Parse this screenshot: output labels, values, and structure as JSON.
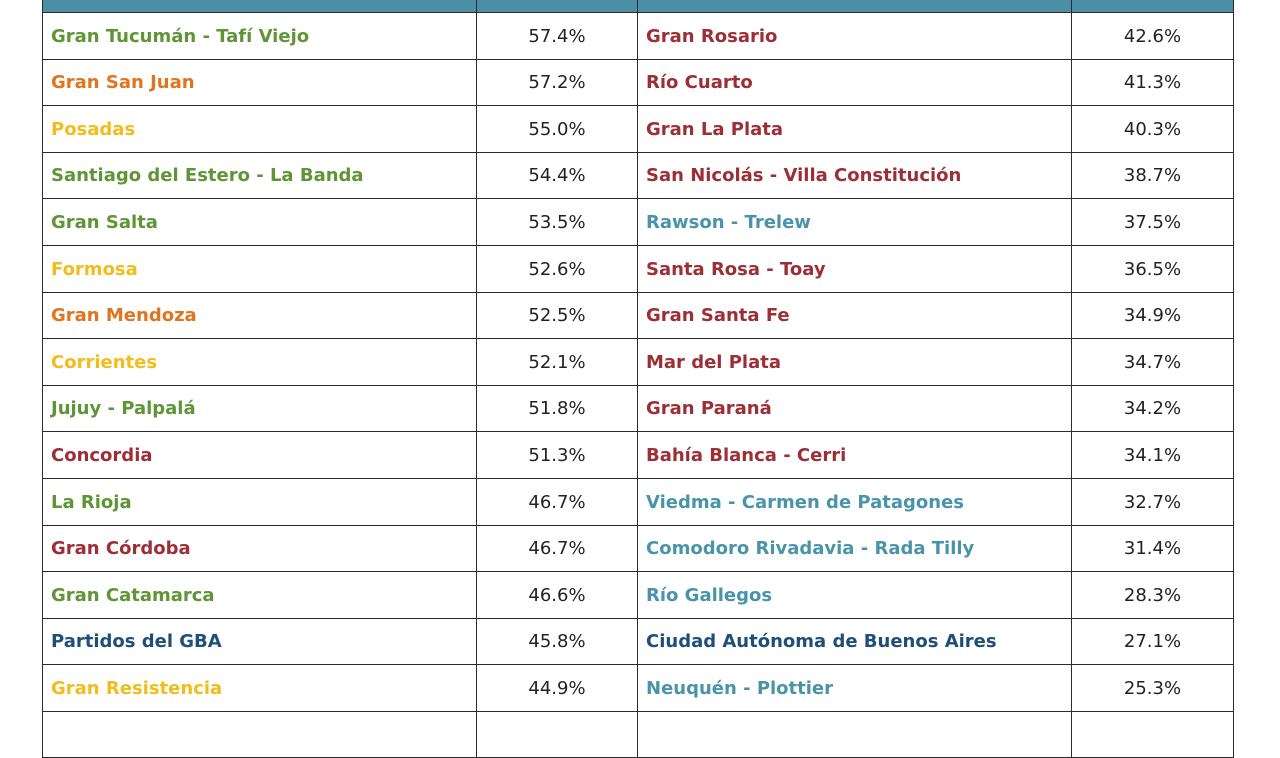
{
  "table": {
    "rows": [
      {
        "left": {
          "name": "Gran Tucumán - Tafí Viejo",
          "value": "57.4%",
          "color": "#5f9536"
        },
        "right": {
          "name": "Gran Rosario",
          "value": "42.6%",
          "color": "#9b2f35"
        }
      },
      {
        "left": {
          "name": "Gran San Juan",
          "value": "57.2%",
          "color": "#e0741f"
        },
        "right": {
          "name": "Río Cuarto",
          "value": "41.3%",
          "color": "#9b2f35"
        }
      },
      {
        "left": {
          "name": "Posadas",
          "value": "55.0%",
          "color": "#f2bd1c"
        },
        "right": {
          "name": "Gran La Plata",
          "value": "40.3%",
          "color": "#9b2f35"
        }
      },
      {
        "left": {
          "name": "Santiago del Estero - La Banda",
          "value": "54.4%",
          "color": "#5f9536"
        },
        "right": {
          "name": "San Nicolás - Villa Constitución",
          "value": "38.7%",
          "color": "#9b2f35"
        }
      },
      {
        "left": {
          "name": "Gran Salta",
          "value": "53.5%",
          "color": "#5f9536"
        },
        "right": {
          "name": "Rawson - Trelew",
          "value": "37.5%",
          "color": "#4a94aa"
        }
      },
      {
        "left": {
          "name": "Formosa",
          "value": "52.6%",
          "color": "#f2bd1c"
        },
        "right": {
          "name": "Santa Rosa - Toay",
          "value": "36.5%",
          "color": "#9b2f35"
        }
      },
      {
        "left": {
          "name": "Gran Mendoza",
          "value": "52.5%",
          "color": "#e0741f"
        },
        "right": {
          "name": "Gran Santa Fe",
          "value": "34.9%",
          "color": "#9b2f35"
        }
      },
      {
        "left": {
          "name": "Corrientes",
          "value": "52.1%",
          "color": "#f2bd1c"
        },
        "right": {
          "name": "Mar del Plata",
          "value": "34.7%",
          "color": "#9b2f35"
        }
      },
      {
        "left": {
          "name": "Jujuy - Palpalá",
          "value": "51.8%",
          "color": "#5f9536"
        },
        "right": {
          "name": "Gran Paraná",
          "value": "34.2%",
          "color": "#9b2f35"
        }
      },
      {
        "left": {
          "name": "Concordia",
          "value": "51.3%",
          "color": "#9b2f35"
        },
        "right": {
          "name": "Bahía Blanca - Cerri",
          "value": "34.1%",
          "color": "#9b2f35"
        }
      },
      {
        "left": {
          "name": "La Rioja",
          "value": "46.7%",
          "color": "#5f9536"
        },
        "right": {
          "name": "Viedma - Carmen de Patagones",
          "value": "32.7%",
          "color": "#4a94aa"
        }
      },
      {
        "left": {
          "name": "Gran Córdoba",
          "value": "46.7%",
          "color": "#9b2f35"
        },
        "right": {
          "name": "Comodoro Rivadavia - Rada Tilly",
          "value": "31.4%",
          "color": "#4a94aa"
        }
      },
      {
        "left": {
          "name": "Gran Catamarca",
          "value": "46.6%",
          "color": "#5f9536"
        },
        "right": {
          "name": "Río Gallegos",
          "value": "28.3%",
          "color": "#4a94aa"
        }
      },
      {
        "left": {
          "name": "Partidos del GBA",
          "value": "45.8%",
          "color": "#1f4f78"
        },
        "right": {
          "name": "Ciudad Autónoma de Buenos Aires",
          "value": "27.1%",
          "color": "#1f4f78"
        }
      },
      {
        "left": {
          "name": "Gran Resistencia",
          "value": "44.9%",
          "color": "#f2bd1c"
        },
        "right": {
          "name": "Neuquén - Plottier",
          "value": "25.3%",
          "color": "#4a94aa"
        }
      }
    ]
  }
}
